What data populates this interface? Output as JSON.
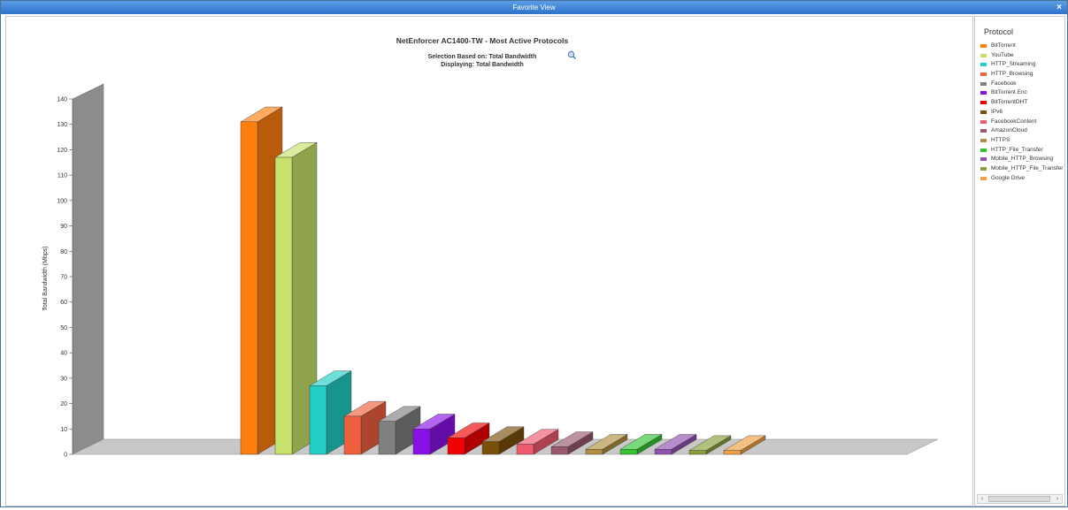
{
  "window": {
    "title": "Favorite View",
    "close_label": "×"
  },
  "chart_data": {
    "type": "bar",
    "title": "NetEnforcer AC1400-TW - Most Active Protocols",
    "subtitle_1": "Selection Based on: Total Bandwidth",
    "subtitle_2": "Displaying: Total Bandwidth",
    "ylabel": "Total Bandwidth (Mbps)",
    "ylim": [
      0,
      140
    ],
    "yticks": [
      0,
      10,
      20,
      30,
      40,
      50,
      60,
      70,
      80,
      90,
      100,
      110,
      120,
      130,
      140
    ],
    "categories": [
      "BitTorrent",
      "YouTube",
      "HTTP_Streaming",
      "HTTP_Browsing",
      "Facebook",
      "BitTorrent Enc",
      "BitTorrentDHT",
      "IPv6",
      "FacebookContent",
      "AmazonCloud",
      "HTTPS",
      "HTTP_File_Transfer",
      "Mobile_HTTP_Browsing",
      "Mobile_HTTP_File_Transfer",
      "Google Drive"
    ],
    "values": [
      131,
      117,
      27,
      15,
      13,
      10,
      6.5,
      5,
      4,
      3,
      2,
      2,
      2,
      1.5,
      1.5
    ],
    "colors": [
      "#ff7f0e",
      "#c6e26a",
      "#22cec6",
      "#f0603e",
      "#808080",
      "#8a10e8",
      "#f00000",
      "#7a4f0a",
      "#f05a6e",
      "#9a5870",
      "#b09040",
      "#32c432",
      "#9050b0",
      "#8a9f3a",
      "#f0a040"
    ],
    "legend_title": "Protocol",
    "legend_position": "right",
    "grid": false
  },
  "legend_scroll": {
    "left": "‹",
    "right": "›"
  }
}
